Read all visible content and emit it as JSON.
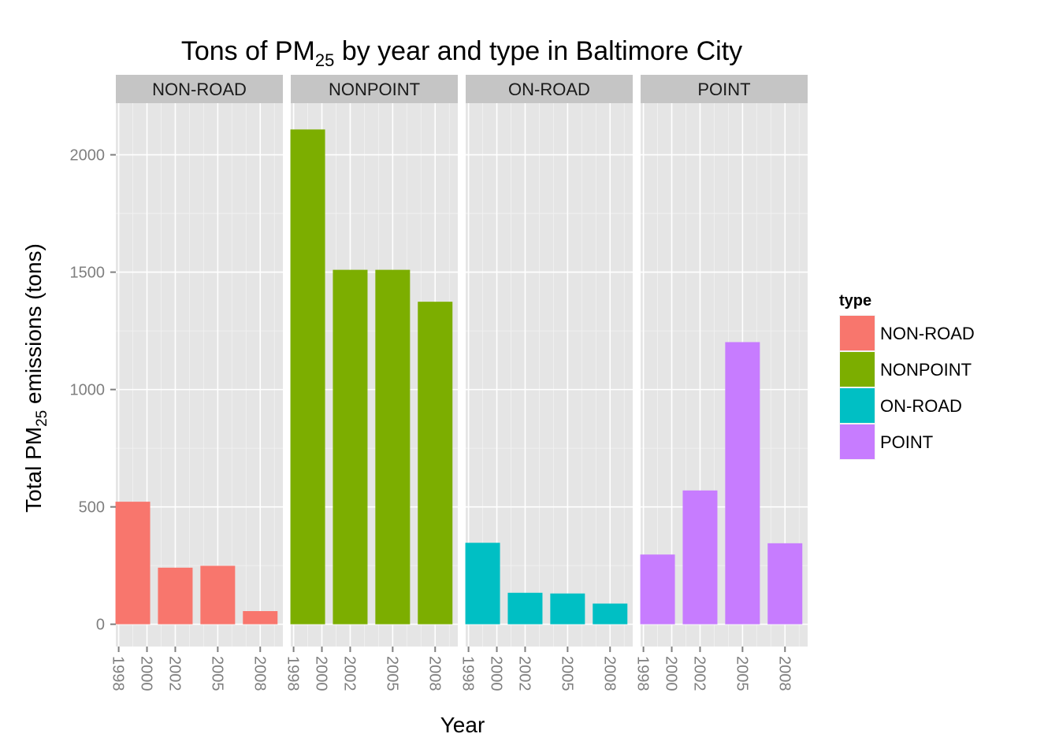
{
  "chart_data": {
    "type": "bar",
    "title": "Tons of PM",
    "title_subscript": "25",
    "title_rest": " by year and type in Baltimore City",
    "xlabel": "Year",
    "ylabel_main": "Total PM",
    "ylabel_subscript": "25",
    "ylabel_rest": " emissions (tons)",
    "x": [
      1999,
      2002,
      2005,
      2008
    ],
    "x_ticks": [
      1998,
      2000,
      2002,
      2005,
      2008
    ],
    "x_range": [
      1997.8,
      2009.6
    ],
    "ylim": [
      -95,
      2220
    ],
    "y_ticks": [
      0,
      500,
      1000,
      1500,
      2000
    ],
    "grid": true,
    "legend": {
      "title": "type",
      "position": "right"
    },
    "panels": [
      {
        "name": "NON-ROAD",
        "color": "#F8766D",
        "values": [
          522,
          241,
          249,
          56
        ]
      },
      {
        "name": "NONPOINT",
        "color": "#7CAE00",
        "values": [
          2108,
          1510,
          1510,
          1374
        ]
      },
      {
        "name": "ON-ROAD",
        "color": "#00BFC4",
        "values": [
          347,
          134,
          131,
          88
        ]
      },
      {
        "name": "POINT",
        "color": "#C77CFF",
        "values": [
          297,
          570,
          1202,
          345
        ]
      }
    ]
  }
}
